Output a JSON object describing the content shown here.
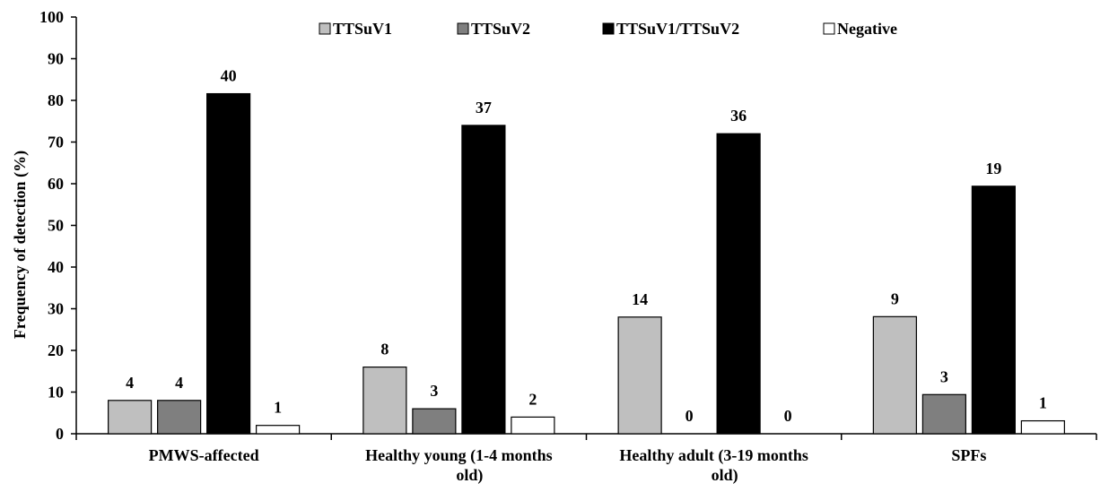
{
  "chart_data": {
    "type": "bar",
    "title": "",
    "xlabel": "",
    "ylabel": "Frequency of detection (%)",
    "ylim": [
      0,
      100
    ],
    "yticks": [
      0,
      10,
      20,
      30,
      40,
      50,
      60,
      70,
      80,
      90,
      100
    ],
    "grid": false,
    "legend_position": "top-center",
    "categories": [
      [
        "PMWS-affected"
      ],
      [
        "Healthy young  (1-4 months",
        "old)"
      ],
      [
        "Healthy adult  (3-19 months",
        "old)"
      ],
      [
        "SPFs"
      ]
    ],
    "series": [
      {
        "name": "TTSuV1",
        "color": "#bfbfbf",
        "values": [
          8,
          16,
          28,
          28.1
        ],
        "labels": [
          "4",
          "8",
          "14",
          "9"
        ]
      },
      {
        "name": "TTSuV2",
        "color": "#7f7f7f",
        "values": [
          8,
          6,
          0,
          9.4
        ],
        "labels": [
          "4",
          "3",
          "0",
          "3"
        ]
      },
      {
        "name": "TTSuV1/TTSuV2",
        "color": "#000000",
        "values": [
          81.6,
          74,
          72,
          59.4
        ],
        "labels": [
          "40",
          "37",
          "36",
          "19"
        ]
      },
      {
        "name": "Negative",
        "color": "#ffffff",
        "values": [
          2,
          4,
          0,
          3.1
        ],
        "labels": [
          "1",
          "2",
          "0",
          "1"
        ]
      }
    ]
  }
}
